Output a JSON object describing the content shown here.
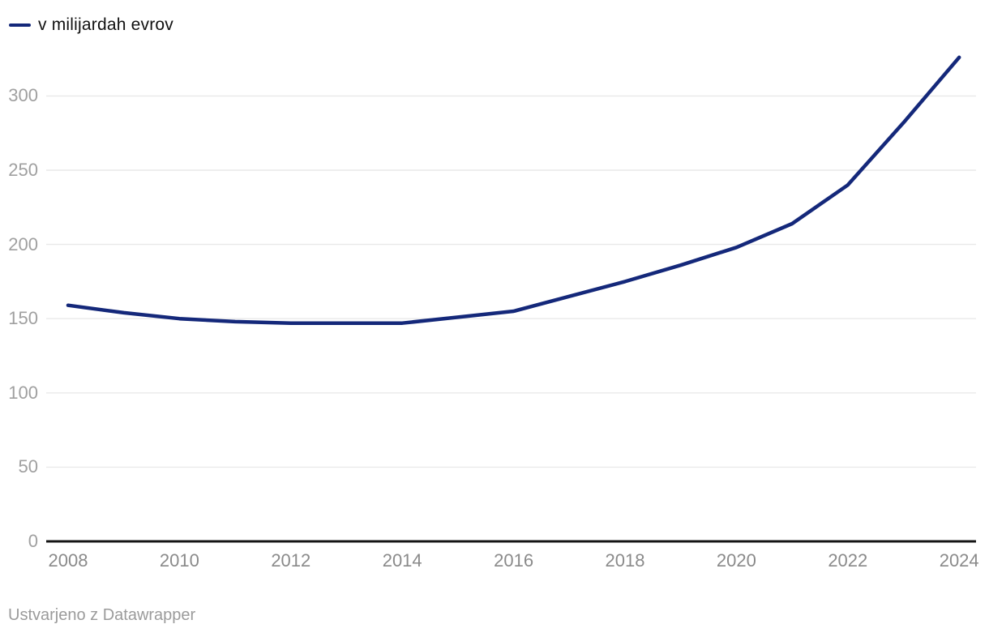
{
  "legend": {
    "label": "v milijardah evrov"
  },
  "footer": {
    "attribution": "Ustvarjeno z Datawrapper"
  },
  "colors": {
    "line": "#14287a",
    "grid": "#e9e9e9",
    "baseline": "#141414",
    "y_tick_text": "#a0a0a0",
    "x_tick_text": "#8a8a8a",
    "legend_text": "#111111",
    "footer_text": "#9b9b9b",
    "background": "#ffffff"
  },
  "chart_data": {
    "type": "line",
    "title": "",
    "legend_position": "top-left",
    "grid": "horizontal",
    "x": [
      2008,
      2009,
      2010,
      2011,
      2012,
      2013,
      2014,
      2015,
      2016,
      2017,
      2018,
      2019,
      2020,
      2021,
      2022,
      2023,
      2024
    ],
    "series": [
      {
        "name": "v milijardah evrov",
        "values": [
          159,
          154,
          150,
          148,
          147,
          147,
          147,
          151,
          155,
          165,
          175,
          186,
          198,
          214,
          240,
          282,
          326
        ]
      }
    ],
    "x_tick_labels": [
      "2008",
      "2010",
      "2012",
      "2014",
      "2016",
      "2018",
      "2020",
      "2022",
      "2024"
    ],
    "y_ticks": [
      0,
      50,
      100,
      150,
      200,
      250,
      300
    ],
    "y_tick_labels": [
      "0",
      "50",
      "100",
      "150",
      "200",
      "250",
      "300"
    ],
    "xlim": [
      2008,
      2024
    ],
    "ylim": [
      0,
      335
    ]
  }
}
